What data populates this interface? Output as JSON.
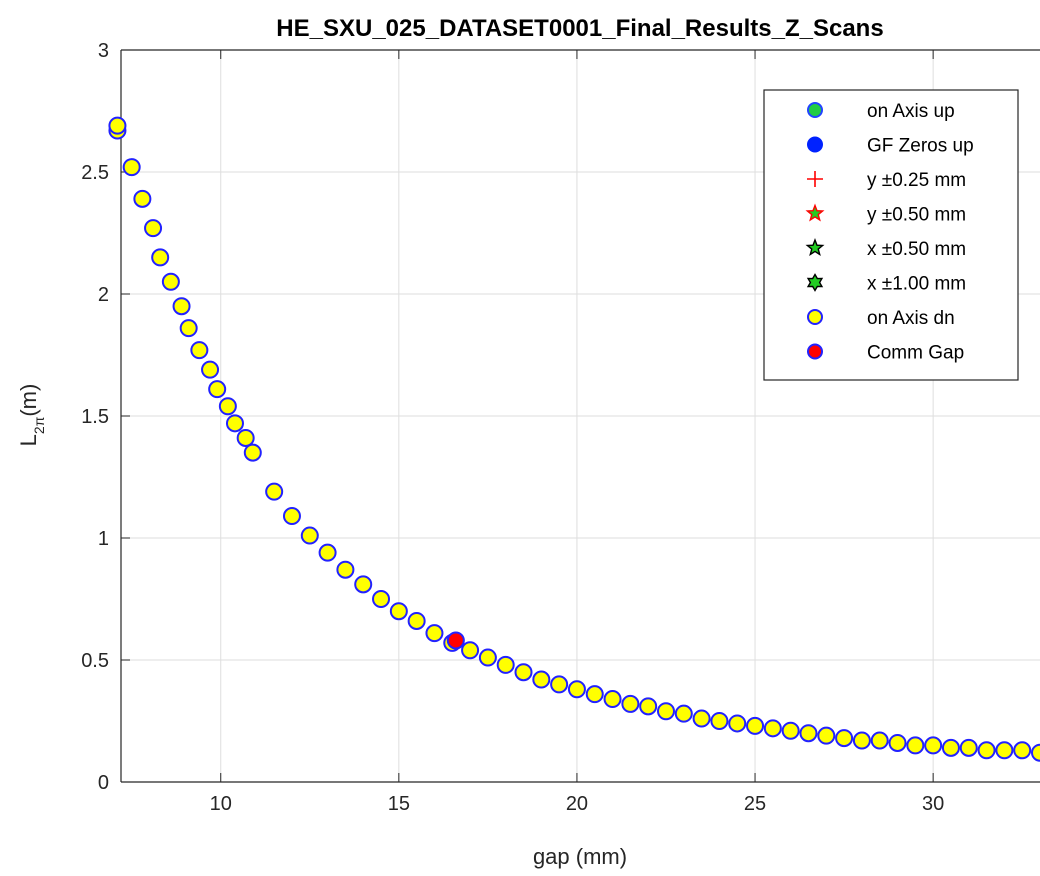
{
  "chart_data": {
    "type": "scatter",
    "title": "HE_SXU_025_DATASET0001_Final_Results_Z_Scans",
    "xlabel": "gap (mm)",
    "ylabel": "L",
    "ylabel_subscript": "2π",
    "ylabel_suffix": "(m)",
    "xlim": [
      7.2,
      33
    ],
    "ylim": [
      0,
      3
    ],
    "xticks": [
      10,
      15,
      20,
      25,
      30
    ],
    "xtick_labels": [
      "10",
      "15",
      "20",
      "25",
      "30"
    ],
    "yticks": [
      0,
      0.5,
      1,
      1.5,
      2,
      2.5,
      3
    ],
    "ytick_labels": [
      "0",
      "0.5",
      "1",
      "1.5",
      "2",
      "2.5",
      "3"
    ],
    "grid": true,
    "legend_position": "top-right",
    "legend": [
      {
        "label": "on Axis up",
        "marker": "circle",
        "color": "#22cc44",
        "edge": "#2244ff"
      },
      {
        "label": "GF Zeros up",
        "marker": "circle",
        "color": "#0022ff",
        "edge": "#0022ff"
      },
      {
        "label": "y ±0.25 mm",
        "marker": "plus",
        "color": "#ff0000",
        "edge": "#ff0000"
      },
      {
        "label": "y ±0.50 mm",
        "marker": "star",
        "color": "#22cc22",
        "edge": "#ff0000"
      },
      {
        "label": "x ±0.50 mm",
        "marker": "star",
        "color": "#22cc22",
        "edge": "#000000"
      },
      {
        "label": "x ±1.00 mm",
        "marker": "hexagram",
        "color": "#22cc22",
        "edge": "#000000"
      },
      {
        "label": "on Axis dn",
        "marker": "circle",
        "color": "#ffff00",
        "edge": "#2222ff"
      },
      {
        "label": "Comm Gap",
        "marker": "circle",
        "color": "#ff0000",
        "edge": "#2222ff"
      }
    ],
    "series": [
      {
        "name": "on Axis dn",
        "x": [
          7.1,
          7.1,
          7.5,
          7.8,
          8.1,
          8.3,
          8.6,
          8.9,
          9.1,
          9.4,
          9.7,
          9.9,
          10.2,
          10.4,
          10.7,
          10.9,
          11.5,
          12.0,
          12.5,
          13.0,
          13.5,
          14.0,
          14.5,
          15.0,
          15.5,
          16.0,
          16.5,
          17.0,
          17.5,
          18.0,
          18.5,
          19.0,
          19.5,
          20.0,
          20.5,
          21.0,
          21.5,
          22.0,
          22.5,
          23.0,
          23.5,
          24.0,
          24.5,
          25.0,
          25.5,
          26.0,
          26.5,
          27.0,
          27.5,
          28.0,
          28.5,
          29.0,
          29.5,
          30.0,
          30.5,
          31.0,
          31.5,
          32.0,
          32.5,
          33.0
        ],
        "y": [
          2.67,
          2.69,
          2.52,
          2.39,
          2.27,
          2.15,
          2.05,
          1.95,
          1.86,
          1.77,
          1.69,
          1.61,
          1.54,
          1.47,
          1.41,
          1.35,
          1.19,
          1.09,
          1.01,
          0.94,
          0.87,
          0.81,
          0.75,
          0.7,
          0.66,
          0.61,
          0.57,
          0.54,
          0.51,
          0.48,
          0.45,
          0.42,
          0.4,
          0.38,
          0.36,
          0.34,
          0.32,
          0.31,
          0.29,
          0.28,
          0.26,
          0.25,
          0.24,
          0.23,
          0.22,
          0.21,
          0.2,
          0.19,
          0.18,
          0.17,
          0.17,
          0.16,
          0.15,
          0.15,
          0.14,
          0.14,
          0.13,
          0.13,
          0.13,
          0.12
        ]
      },
      {
        "name": "Comm Gap",
        "x": [
          16.6
        ],
        "y": [
          0.58
        ]
      }
    ]
  }
}
